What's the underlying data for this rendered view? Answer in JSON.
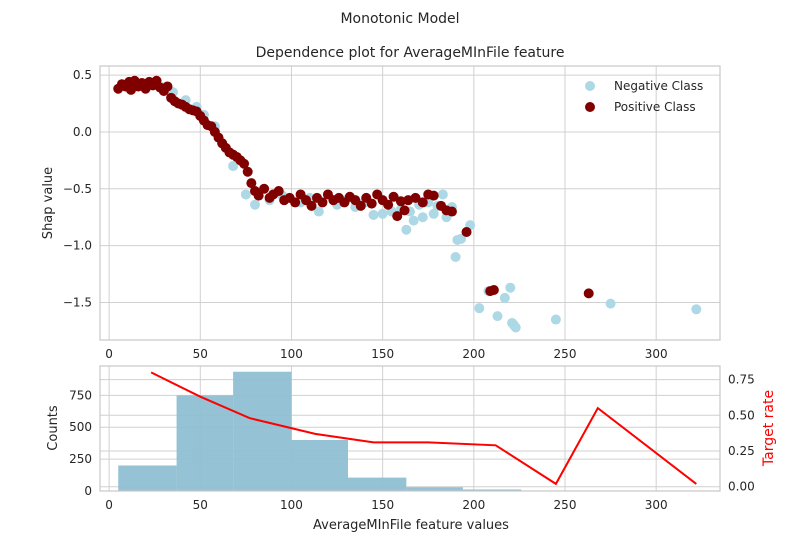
{
  "figure": {
    "suptitle": "Monotonic Model"
  },
  "chart_data": [
    {
      "type": "scatter",
      "title": "Dependence plot for AverageMInFile feature",
      "xlabel": "",
      "ylabel": "Shap value",
      "xlim": [
        -5,
        335
      ],
      "ylim": [
        -1.83,
        0.58
      ],
      "xticks": [
        0,
        50,
        100,
        150,
        200,
        250,
        300
      ],
      "xtick_labels": [
        "0",
        "50",
        "100",
        "150",
        "200",
        "250",
        "300"
      ],
      "yticks": [
        0.5,
        0.0,
        -0.5,
        -1.0,
        -1.5
      ],
      "ytick_labels": [
        "0.5",
        "0.0",
        "−0.5",
        "−1.0",
        "−1.5"
      ],
      "grid": true,
      "legend": "top-right",
      "series": [
        {
          "name": "Negative Class",
          "color": "#add8e6",
          "points": [
            [
              175,
              -0.62
            ],
            [
              180,
              -0.65
            ],
            [
              183,
              -0.55
            ],
            [
              185,
              -0.75
            ],
            [
              188,
              -0.66
            ],
            [
              190,
              -1.1
            ],
            [
              191,
              -0.95
            ],
            [
              193,
              -0.94
            ],
            [
              196,
              -0.88
            ],
            [
              198,
              -0.82
            ],
            [
              203,
              -1.55
            ],
            [
              208,
              -1.4
            ],
            [
              213,
              -1.62
            ],
            [
              217,
              -1.46
            ],
            [
              220,
              -1.37
            ],
            [
              221,
              -1.68
            ],
            [
              222,
              -1.7
            ],
            [
              223,
              -1.72
            ],
            [
              245,
              -1.65
            ],
            [
              275,
              -1.51
            ],
            [
              322,
              -1.56
            ],
            [
              160,
              -0.68
            ],
            [
              165,
              -0.7
            ],
            [
              170,
              -0.64
            ],
            [
              155,
              -0.7
            ],
            [
              150,
              -0.72
            ],
            [
              145,
              -0.73
            ],
            [
              163,
              -0.86
            ],
            [
              172,
              -0.75
            ],
            [
              178,
              -0.72
            ],
            [
              167,
              -0.78
            ],
            [
              140,
              -0.62
            ],
            [
              135,
              -0.66
            ],
            [
              130,
              -0.6
            ],
            [
              125,
              -0.64
            ],
            [
              115,
              -0.7
            ],
            [
              110,
              -0.58
            ],
            [
              105,
              -0.62
            ],
            [
              95,
              -0.56
            ],
            [
              88,
              -0.6
            ],
            [
              80,
              -0.64
            ],
            [
              75,
              -0.55
            ],
            [
              68,
              -0.3
            ],
            [
              62,
              -0.1
            ],
            [
              58,
              0.05
            ],
            [
              52,
              0.15
            ],
            [
              48,
              0.22
            ],
            [
              42,
              0.28
            ],
            [
              35,
              0.35
            ],
            [
              28,
              0.4
            ],
            [
              15,
              0.42
            ]
          ]
        },
        {
          "name": "Positive Class",
          "color": "#800000",
          "points": [
            [
              5,
              0.38
            ],
            [
              7,
              0.42
            ],
            [
              9,
              0.4
            ],
            [
              11,
              0.44
            ],
            [
              12,
              0.37
            ],
            [
              14,
              0.45
            ],
            [
              16,
              0.4
            ],
            [
              18,
              0.43
            ],
            [
              20,
              0.38
            ],
            [
              22,
              0.44
            ],
            [
              24,
              0.41
            ],
            [
              26,
              0.45
            ],
            [
              28,
              0.39
            ],
            [
              30,
              0.36
            ],
            [
              32,
              0.4
            ],
            [
              34,
              0.3
            ],
            [
              36,
              0.27
            ],
            [
              38,
              0.25
            ],
            [
              40,
              0.24
            ],
            [
              42,
              0.22
            ],
            [
              44,
              0.2
            ],
            [
              46,
              0.19
            ],
            [
              48,
              0.18
            ],
            [
              50,
              0.14
            ],
            [
              52,
              0.1
            ],
            [
              54,
              0.06
            ],
            [
              56,
              0.05
            ],
            [
              58,
              0.0
            ],
            [
              60,
              -0.05
            ],
            [
              62,
              -0.1
            ],
            [
              64,
              -0.14
            ],
            [
              66,
              -0.18
            ],
            [
              68,
              -0.2
            ],
            [
              70,
              -0.22
            ],
            [
              72,
              -0.25
            ],
            [
              74,
              -0.28
            ],
            [
              76,
              -0.35
            ],
            [
              78,
              -0.45
            ],
            [
              80,
              -0.52
            ],
            [
              82,
              -0.56
            ],
            [
              85,
              -0.5
            ],
            [
              88,
              -0.58
            ],
            [
              90,
              -0.55
            ],
            [
              93,
              -0.52
            ],
            [
              96,
              -0.6
            ],
            [
              99,
              -0.58
            ],
            [
              102,
              -0.62
            ],
            [
              105,
              -0.55
            ],
            [
              108,
              -0.6
            ],
            [
              111,
              -0.65
            ],
            [
              114,
              -0.58
            ],
            [
              117,
              -0.62
            ],
            [
              120,
              -0.55
            ],
            [
              123,
              -0.6
            ],
            [
              126,
              -0.58
            ],
            [
              129,
              -0.62
            ],
            [
              132,
              -0.57
            ],
            [
              135,
              -0.6
            ],
            [
              138,
              -0.65
            ],
            [
              141,
              -0.58
            ],
            [
              144,
              -0.63
            ],
            [
              147,
              -0.55
            ],
            [
              150,
              -0.6
            ],
            [
              153,
              -0.64
            ],
            [
              156,
              -0.57
            ],
            [
              160,
              -0.61
            ],
            [
              164,
              -0.6
            ],
            [
              168,
              -0.58
            ],
            [
              172,
              -0.62
            ],
            [
              175,
              -0.55
            ],
            [
              178,
              -0.56
            ],
            [
              182,
              -0.65
            ],
            [
              185,
              -0.69
            ],
            [
              188,
              -0.7
            ],
            [
              158,
              -0.74
            ],
            [
              162,
              -0.69
            ],
            [
              196,
              -0.88
            ],
            [
              209,
              -1.4
            ],
            [
              211,
              -1.39
            ],
            [
              263,
              -1.42
            ]
          ]
        }
      ]
    },
    {
      "type": "bar",
      "title": "",
      "xlabel": "AverageMInFile feature values",
      "ylabel": "Counts",
      "y2label": "Target rate",
      "xlim": [
        -5,
        335
      ],
      "ylim": [
        0,
        980
      ],
      "y2lim": [
        -0.03,
        0.845
      ],
      "xticks": [
        0,
        50,
        100,
        150,
        200,
        250,
        300
      ],
      "xtick_labels": [
        "0",
        "50",
        "100",
        "150",
        "200",
        "250",
        "300"
      ],
      "yticks": [
        0,
        250,
        500,
        750
      ],
      "ytick_labels": [
        "0",
        "250",
        "500",
        "750"
      ],
      "y2ticks": [
        0.0,
        0.25,
        0.5,
        0.75
      ],
      "y2tick_labels": [
        "0.00",
        "0.25",
        "0.50",
        "0.75"
      ],
      "grid": true,
      "bar_color": "#8fbfd3",
      "line_color": "#ff0000",
      "bins": [
        {
          "x0": 5,
          "x1": 37,
          "count": 200
        },
        {
          "x0": 37,
          "x1": 68,
          "count": 750
        },
        {
          "x0": 68,
          "x1": 100,
          "count": 935
        },
        {
          "x0": 100,
          "x1": 131,
          "count": 400
        },
        {
          "x0": 131,
          "x1": 163,
          "count": 105
        },
        {
          "x0": 163,
          "x1": 194,
          "count": 30
        },
        {
          "x0": 194,
          "x1": 226,
          "count": 12
        },
        {
          "x0": 226,
          "x1": 258,
          "count": 2
        },
        {
          "x0": 258,
          "x1": 290,
          "count": 3
        },
        {
          "x0": 290,
          "x1": 322,
          "count": 1
        }
      ],
      "target_rate": {
        "x": [
          23,
          50,
          77,
          113,
          145,
          175,
          212,
          245,
          268,
          322
        ],
        "y": [
          0.8,
          0.63,
          0.48,
          0.37,
          0.31,
          0.31,
          0.29,
          0.02,
          0.55,
          0.02
        ]
      }
    }
  ]
}
